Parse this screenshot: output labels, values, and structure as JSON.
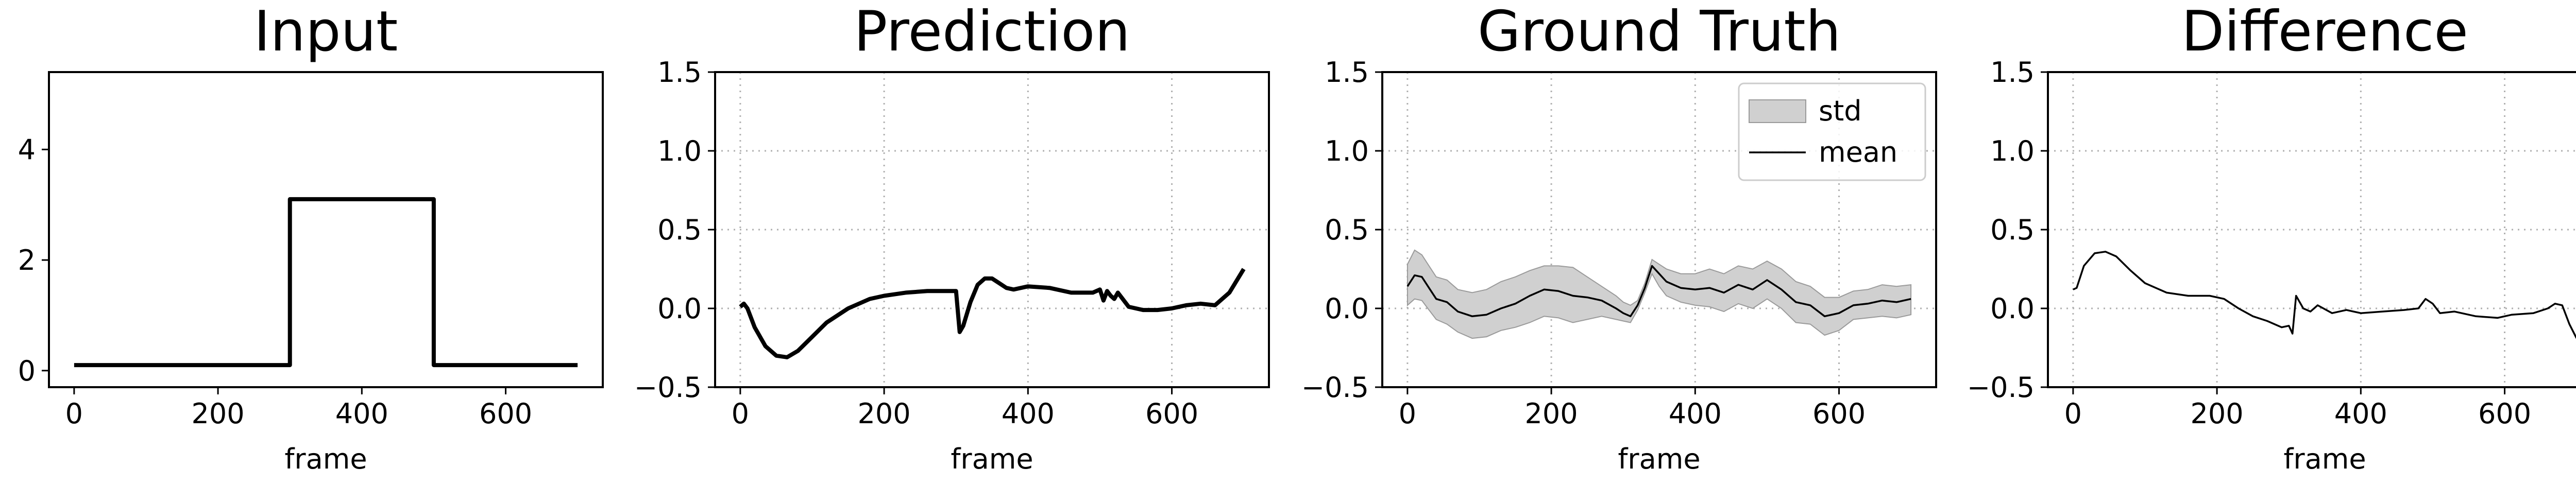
{
  "chart_data": [
    {
      "type": "line",
      "title": "Input",
      "xlabel": "frame",
      "xlim": [
        -35,
        735
      ],
      "ylim": [
        -0.3,
        5.4
      ],
      "xticks": [
        0,
        200,
        400,
        600
      ],
      "xtick_labels": [
        "0",
        "200",
        "400",
        "600"
      ],
      "yticks": [
        0,
        2,
        4
      ],
      "ytick_labels": [
        "0",
        "2",
        "4"
      ],
      "grid": false,
      "series": [
        {
          "name": "input",
          "x": [
            0,
            300,
            300,
            500,
            500,
            700
          ],
          "y": [
            0.1,
            0.1,
            3.1,
            3.1,
            0.1,
            0.1
          ]
        }
      ]
    },
    {
      "type": "line",
      "title": "Prediction",
      "xlabel": "frame",
      "xlim": [
        -35,
        735
      ],
      "ylim": [
        -0.5,
        1.5
      ],
      "xticks": [
        0,
        200,
        400,
        600
      ],
      "xtick_labels": [
        "0",
        "200",
        "400",
        "600"
      ],
      "yticks": [
        -0.5,
        0.0,
        0.5,
        1.0,
        1.5
      ],
      "ytick_labels": [
        "−0.5",
        "0.0",
        "0.5",
        "1.0",
        "1.5"
      ],
      "grid": true,
      "series": [
        {
          "name": "prediction",
          "x": [
            0,
            5,
            10,
            20,
            35,
            50,
            65,
            80,
            100,
            120,
            150,
            180,
            200,
            230,
            260,
            290,
            300,
            305,
            310,
            320,
            330,
            340,
            350,
            360,
            370,
            380,
            400,
            430,
            460,
            490,
            500,
            505,
            510,
            515,
            520,
            525,
            530,
            540,
            560,
            580,
            600,
            620,
            640,
            660,
            680,
            700
          ],
          "y": [
            0.01,
            0.03,
            0.0,
            -0.12,
            -0.24,
            -0.3,
            -0.31,
            -0.27,
            -0.18,
            -0.09,
            0.0,
            0.06,
            0.08,
            0.1,
            0.11,
            0.11,
            0.11,
            -0.15,
            -0.11,
            0.04,
            0.15,
            0.19,
            0.19,
            0.16,
            0.13,
            0.12,
            0.14,
            0.13,
            0.1,
            0.1,
            0.12,
            0.05,
            0.11,
            0.08,
            0.06,
            0.1,
            0.07,
            0.01,
            -0.01,
            -0.01,
            0.0,
            0.02,
            0.03,
            0.02,
            0.1,
            0.25
          ]
        }
      ]
    },
    {
      "type": "area",
      "title": "Ground Truth",
      "xlabel": "frame",
      "xlim": [
        -35,
        735
      ],
      "ylim": [
        -0.5,
        1.5
      ],
      "xticks": [
        0,
        200,
        400,
        600
      ],
      "xtick_labels": [
        "0",
        "200",
        "400",
        "600"
      ],
      "yticks": [
        -0.5,
        0.0,
        0.5,
        1.0,
        1.5
      ],
      "ytick_labels": [
        "−0.5",
        "0.0",
        "0.5",
        "1.0",
        "1.5"
      ],
      "grid": true,
      "legend": {
        "position": "top-right",
        "entries": [
          "std",
          "mean"
        ]
      },
      "series": [
        {
          "name": "mean",
          "x": [
            0,
            10,
            20,
            30,
            40,
            55,
            70,
            90,
            110,
            130,
            150,
            170,
            190,
            210,
            230,
            250,
            270,
            290,
            300,
            310,
            320,
            330,
            340,
            350,
            360,
            380,
            400,
            420,
            440,
            460,
            480,
            500,
            520,
            540,
            560,
            580,
            600,
            620,
            640,
            660,
            680,
            700
          ],
          "y": [
            0.14,
            0.21,
            0.2,
            0.13,
            0.06,
            0.04,
            -0.02,
            -0.05,
            -0.04,
            0.0,
            0.03,
            0.08,
            0.12,
            0.11,
            0.08,
            0.07,
            0.05,
            0.0,
            -0.03,
            -0.05,
            0.02,
            0.13,
            0.27,
            0.22,
            0.17,
            0.13,
            0.12,
            0.13,
            0.1,
            0.15,
            0.12,
            0.18,
            0.12,
            0.04,
            0.02,
            -0.05,
            -0.03,
            0.02,
            0.03,
            0.05,
            0.04,
            0.06
          ]
        },
        {
          "name": "std",
          "x": [
            0,
            10,
            20,
            30,
            40,
            55,
            70,
            90,
            110,
            130,
            150,
            170,
            190,
            210,
            230,
            250,
            270,
            290,
            300,
            310,
            320,
            330,
            340,
            350,
            360,
            380,
            400,
            420,
            440,
            460,
            480,
            500,
            520,
            540,
            560,
            580,
            600,
            620,
            640,
            660,
            680,
            700
          ],
          "y_upper": [
            0.28,
            0.37,
            0.34,
            0.27,
            0.2,
            0.18,
            0.12,
            0.1,
            0.12,
            0.17,
            0.2,
            0.24,
            0.27,
            0.27,
            0.26,
            0.2,
            0.14,
            0.08,
            0.04,
            0.02,
            0.05,
            0.16,
            0.31,
            0.28,
            0.25,
            0.22,
            0.22,
            0.25,
            0.22,
            0.27,
            0.25,
            0.3,
            0.25,
            0.17,
            0.14,
            0.07,
            0.07,
            0.11,
            0.12,
            0.15,
            0.14,
            0.15
          ],
          "y_lower": [
            0.02,
            0.06,
            0.05,
            -0.01,
            -0.07,
            -0.1,
            -0.15,
            -0.19,
            -0.18,
            -0.14,
            -0.12,
            -0.09,
            -0.05,
            -0.06,
            -0.09,
            -0.07,
            -0.05,
            -0.07,
            -0.08,
            -0.09,
            -0.01,
            0.1,
            0.22,
            0.14,
            0.08,
            0.04,
            0.02,
            0.01,
            -0.02,
            0.03,
            0.0,
            0.06,
            0.0,
            -0.09,
            -0.1,
            -0.17,
            -0.14,
            -0.07,
            -0.06,
            -0.05,
            -0.06,
            -0.04
          ]
        }
      ]
    },
    {
      "type": "line",
      "title": "Difference",
      "xlabel": "frame",
      "xlim": [
        -35,
        735
      ],
      "ylim": [
        -0.5,
        1.5
      ],
      "xticks": [
        0,
        200,
        400,
        600
      ],
      "xtick_labels": [
        "0",
        "200",
        "400",
        "600"
      ],
      "yticks": [
        -0.5,
        0.0,
        0.5,
        1.0,
        1.5
      ],
      "ytick_labels": [
        "−0.5",
        "0.0",
        "0.5",
        "1.0",
        "1.5"
      ],
      "grid": true,
      "series": [
        {
          "name": "difference",
          "x": [
            0,
            5,
            15,
            30,
            45,
            60,
            80,
            100,
            130,
            160,
            190,
            210,
            230,
            250,
            270,
            290,
            300,
            305,
            310,
            320,
            330,
            340,
            360,
            380,
            400,
            430,
            460,
            480,
            490,
            500,
            510,
            530,
            560,
            590,
            610,
            640,
            660,
            670,
            680,
            690,
            700
          ],
          "y": [
            0.12,
            0.13,
            0.27,
            0.35,
            0.36,
            0.33,
            0.24,
            0.16,
            0.1,
            0.08,
            0.08,
            0.06,
            0.0,
            -0.05,
            -0.08,
            -0.12,
            -0.11,
            -0.16,
            0.08,
            0.0,
            -0.02,
            0.02,
            -0.03,
            -0.01,
            -0.03,
            -0.02,
            -0.01,
            0.0,
            0.06,
            0.03,
            -0.03,
            -0.02,
            -0.05,
            -0.06,
            -0.04,
            -0.03,
            0.0,
            0.03,
            0.02,
            -0.1,
            -0.19
          ]
        }
      ]
    }
  ]
}
